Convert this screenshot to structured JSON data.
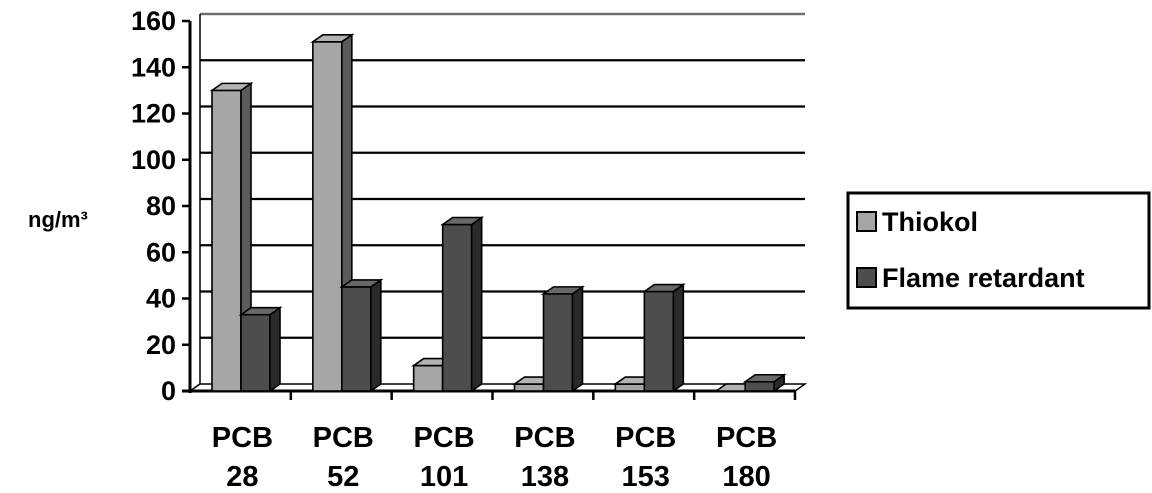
{
  "chart_data": {
    "type": "bar",
    "style": "3d-clustered-column",
    "categories": [
      [
        "PCB",
        "28"
      ],
      [
        "PCB",
        "52"
      ],
      [
        "PCB",
        "101"
      ],
      [
        "PCB",
        "138"
      ],
      [
        "PCB",
        "153"
      ],
      [
        "PCB",
        "180"
      ]
    ],
    "series": [
      {
        "name": "Thiokol",
        "values": [
          130,
          151,
          11,
          3,
          3,
          0
        ],
        "color": "#a6a6a6"
      },
      {
        "name": "Flame retardant",
        "values": [
          33,
          45,
          72,
          42,
          43,
          4
        ],
        "color": "#4d4d4d"
      }
    ],
    "y_ticks": [
      "0",
      "20",
      "40",
      "60",
      "80",
      "100",
      "120",
      "140",
      "160"
    ],
    "ylim": [
      0,
      160
    ],
    "ylabel": "ng/m³",
    "xlabel": "",
    "title": "",
    "grid": true,
    "legend_position": "right"
  }
}
